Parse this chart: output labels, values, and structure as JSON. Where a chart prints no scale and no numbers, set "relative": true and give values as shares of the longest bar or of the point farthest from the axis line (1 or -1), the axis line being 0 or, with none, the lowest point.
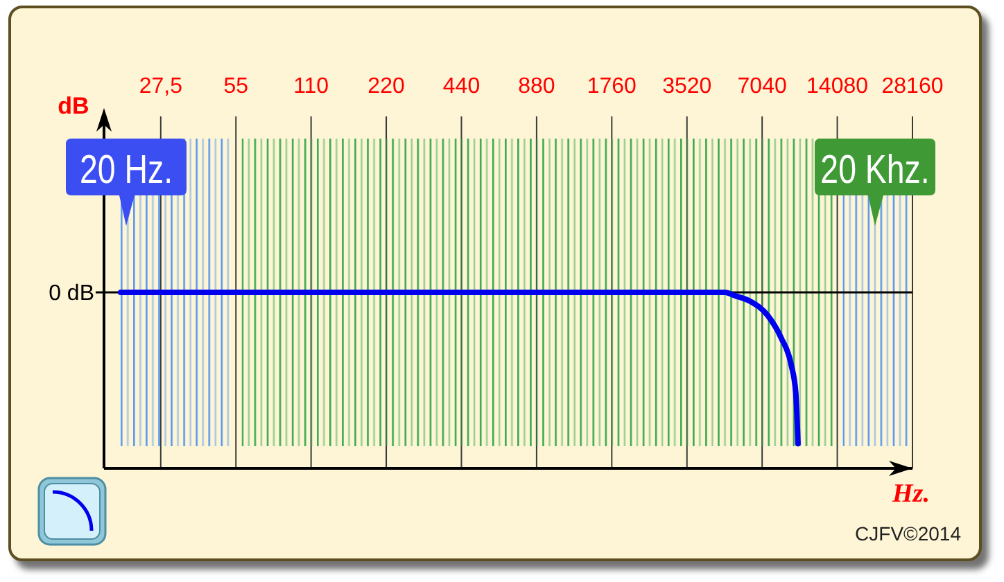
{
  "chart_data": {
    "type": "line",
    "xlabel": "Hz.",
    "ylabel": "dB",
    "x": [
      19,
      5000,
      5500,
      6300,
      7400,
      8400,
      9200,
      9600,
      9800
    ],
    "series": [
      {
        "color": "#0000ee",
        "values": [
          1,
          1,
          0.98,
          0.95,
          0.87,
          0.74,
          0.59,
          0.43,
          0.14
        ]
      }
    ],
    "relative": true,
    "log": "x",
    "xlim": [
      16.3,
      28160
    ],
    "xticks": [
      {
        "value": 27.5,
        "label": "27,5"
      },
      55,
      110,
      220,
      440,
      880,
      1760,
      3520,
      7040,
      14080,
      28160
    ],
    "grid": "x",
    "ref_lines": [
      {
        "axis": "y",
        "value": 1,
        "label": "0 dB",
        "color": "#000000"
      }
    ],
    "bands": [
      {
        "axis": "x",
        "from": 19,
        "to": 52,
        "color": "#5a9af0"
      },
      {
        "axis": "x",
        "from": 58,
        "to": 13300,
        "color": "#3caa4e"
      },
      {
        "axis": "x",
        "from": 14800,
        "to": 26600,
        "color": "#5a9af0"
      }
    ],
    "annotations": [
      {
        "text": "20 Hz.",
        "x": 20
      },
      "20 Khz.",
      "CJFV©2014"
    ]
  }
}
